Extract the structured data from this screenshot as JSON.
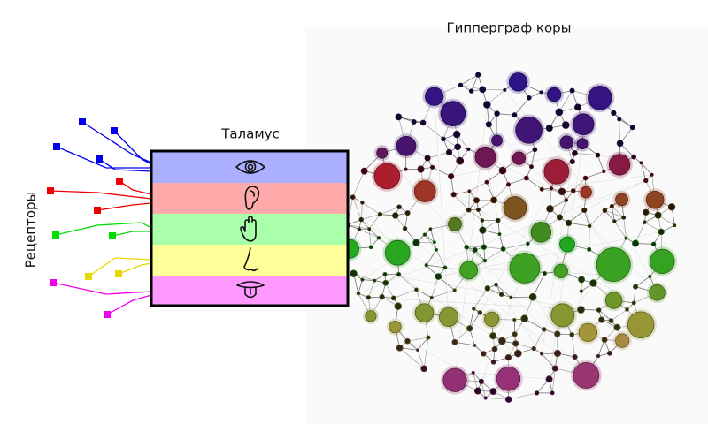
{
  "header": {
    "title": "Гипперграф коры"
  },
  "thalamus": {
    "label": "Таламус"
  },
  "receptors": {
    "label": "Рецепторы"
  }
}
